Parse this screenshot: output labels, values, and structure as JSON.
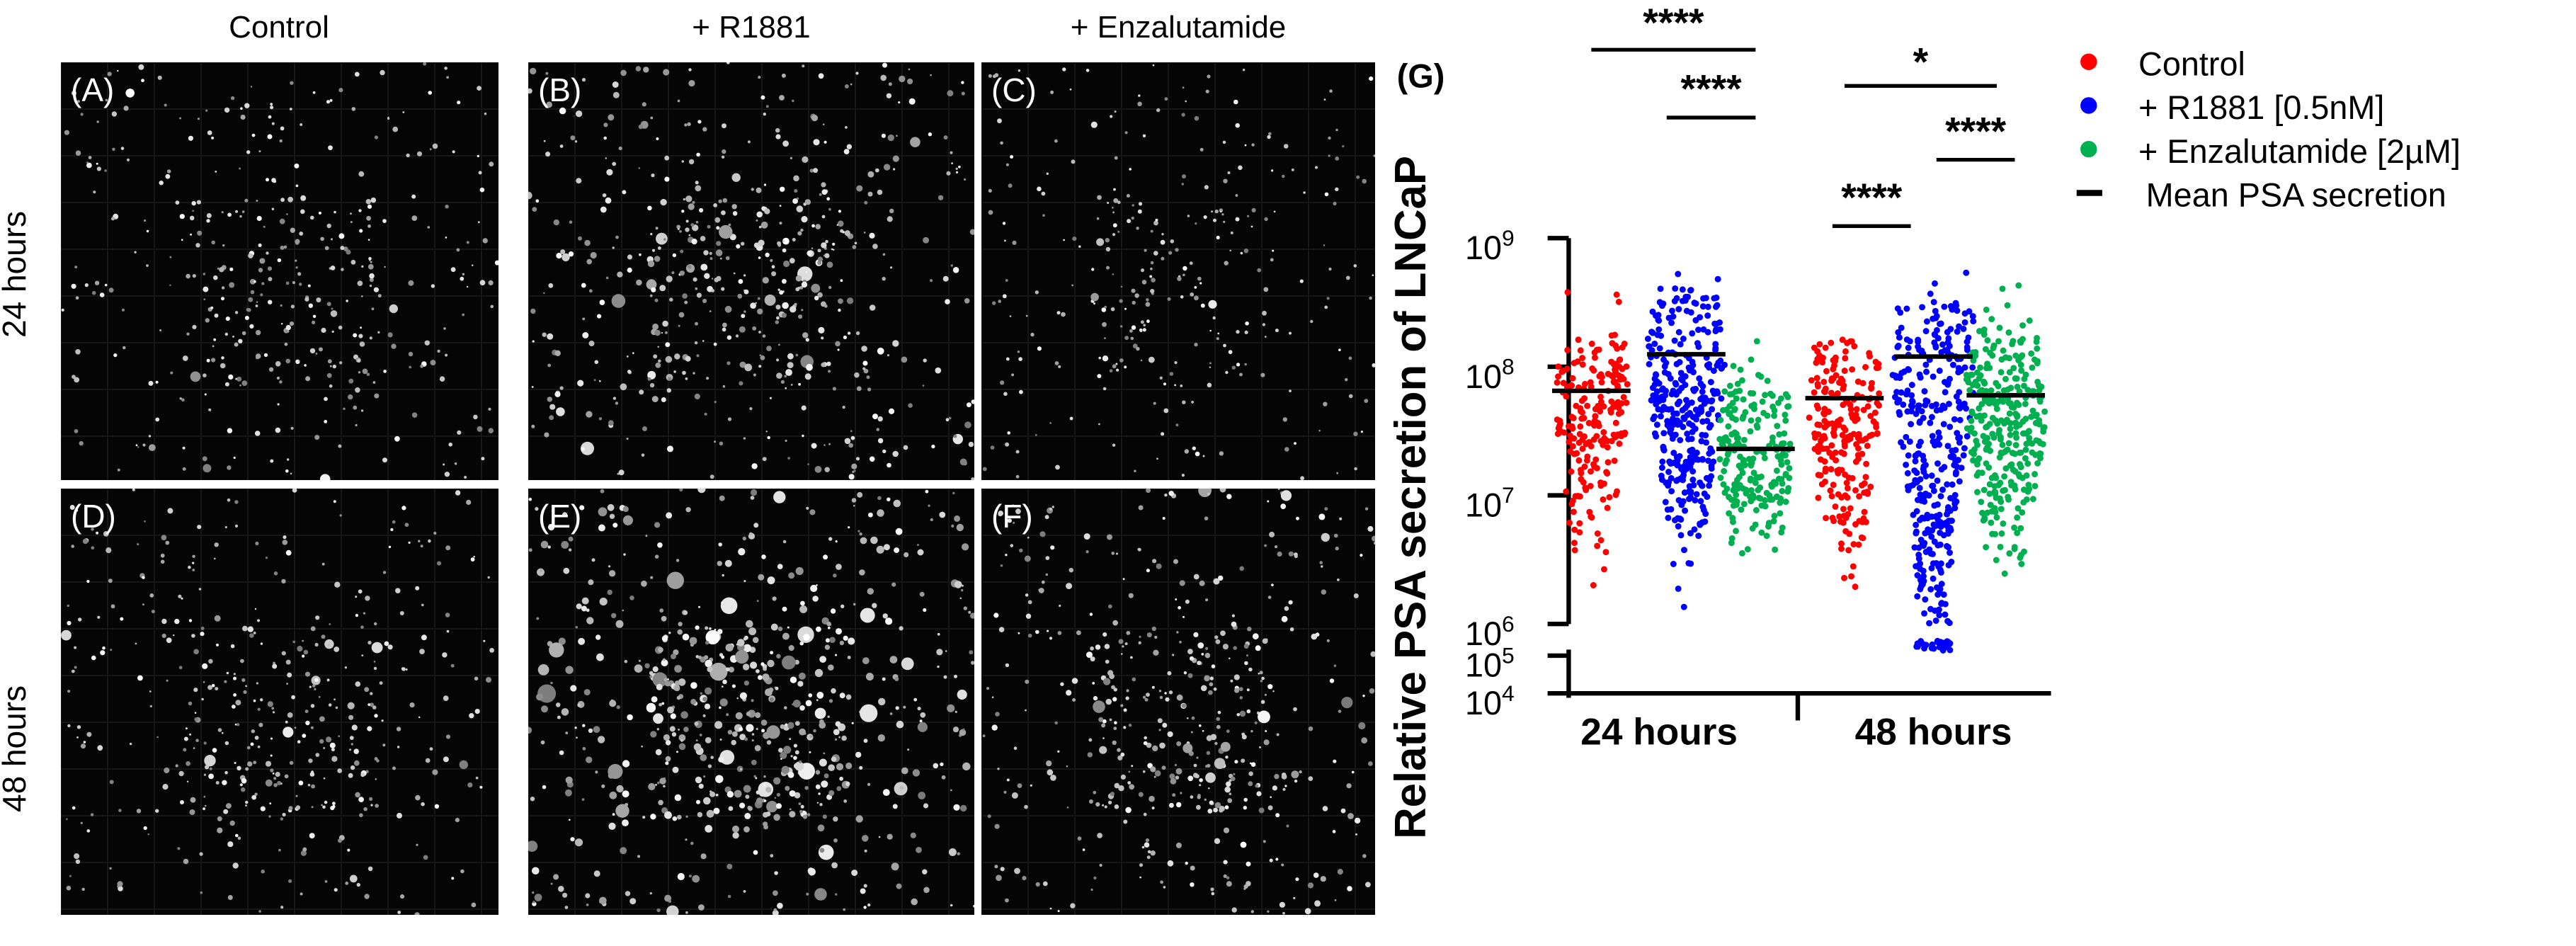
{
  "microscopy": {
    "columns": [
      "Control",
      "+ R1881",
      "+ Enzalutamide"
    ],
    "rows": [
      "24 hours",
      "48 hours"
    ],
    "panels": [
      {
        "letter": "(A)",
        "brightness": 0.45
      },
      {
        "letter": "(B)",
        "brightness": 0.75
      },
      {
        "letter": "(C)",
        "brightness": 0.25
      },
      {
        "letter": "(D)",
        "brightness": 0.5
      },
      {
        "letter": "(E)",
        "brightness": 1.0
      },
      {
        "letter": "(F)",
        "brightness": 0.6
      }
    ]
  },
  "chart_data": {
    "type": "scatter",
    "panel_label": "(G)",
    "ylabel": "Relative PSA secretion of LNCaP",
    "yscale": "log",
    "y_ticks": [
      "10^4",
      "10^5",
      "10^6",
      "10^7",
      "10^8",
      "10^9"
    ],
    "axis_break": "between 10^5 and 10^6",
    "categories": [
      "24 hours",
      "48 hours"
    ],
    "series": [
      {
        "name": "Control",
        "color": "#ff0000",
        "means": [
          65000000.0,
          57000000.0
        ],
        "ranges": [
          [
            1500000.0,
            600000000.0
          ],
          [
            1200000.0,
            400000000.0
          ]
        ]
      },
      {
        "name": "+ R1881 [0.5nM]",
        "color": "#0000ff",
        "means": [
          125000000.0,
          120000000.0
        ],
        "ranges": [
          [
            1200000.0,
            850000000.0
          ],
          [
            100000.0,
            900000000.0
          ]
        ]
      },
      {
        "name": "+ Enzalutamide [2µM]",
        "color": "#00b050",
        "means": [
          23000000.0,
          60000000.0
        ],
        "ranges": [
          [
            1300000.0,
            250000000.0
          ],
          [
            1200000.0,
            600000000.0
          ]
        ]
      }
    ],
    "mean_label": "Mean PSA secretion",
    "significance": [
      {
        "label": "****",
        "between": [
          "24h Control",
          "24h Enzalutamide"
        ]
      },
      {
        "label": "****",
        "between": [
          "24h R1881",
          "24h Enzalutamide"
        ]
      },
      {
        "label": "*",
        "between": [
          "48h Control",
          "48h Enzalutamide"
        ]
      },
      {
        "label": "****",
        "between": [
          "48h Control",
          "48h R1881"
        ]
      },
      {
        "label": "****",
        "between": [
          "48h R1881",
          "48h Enzalutamide"
        ]
      }
    ],
    "grid": false,
    "legend_position": "top-right"
  }
}
